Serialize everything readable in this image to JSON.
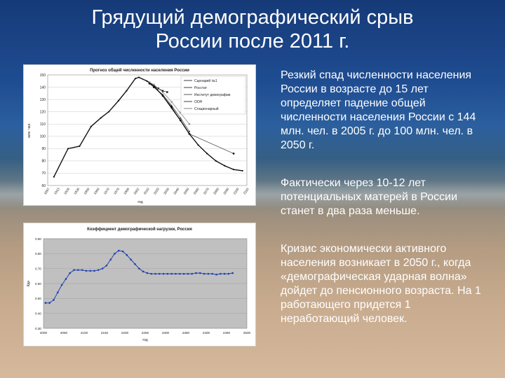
{
  "slide": {
    "title_line1": "Грядущий демографический срыв",
    "title_line2": "России после 2011 г.",
    "paragraphs": [
      "Резкий спад численности населения России в возрасте до 15 лет определяет падение общей численности населения России с 144 млн. чел. в 2005 г. до 100 млн. чел. в 2050 г.",
      "Фактически через 10-12 лет потенциальных матерей в России станет в два раза меньше.",
      "Кризис экономически активного населения возникает в 2050 г., когда «демографическая ударная волна» дойдет до пенсионного возраста. На 1 работающего придется 1 неработающий человек."
    ]
  },
  "colors": {
    "line_series": "#111111",
    "line2": "#1f3fb0",
    "plot_bg": "#c0c0c0"
  },
  "chart_data": [
    {
      "type": "line",
      "title": "Прогноз общей численности населения России",
      "xlabel": "год",
      "ylabel": "млн. чел.",
      "ylim": [
        60,
        150
      ],
      "yticks": [
        60,
        70,
        80,
        90,
        100,
        110,
        120,
        130,
        140,
        150
      ],
      "xticks": [
        "1897",
        "1913",
        "1926",
        "1939",
        "1950",
        "1959",
        "1970",
        "1979",
        "1989",
        "2002",
        "2010",
        "2020",
        "2030",
        "2040",
        "2050",
        "2060",
        "2070",
        "2080",
        "2090",
        "2100",
        "2110"
      ],
      "grid": true,
      "legend_position": "top-right",
      "series": [
        {
          "name": "Сценарий №1",
          "x": [
            1897,
            1913,
            1926,
            1939,
            1950,
            1959,
            1970,
            1979,
            1989,
            1993,
            2002,
            2010,
            2020,
            2030,
            2040,
            2050,
            2060,
            2070,
            2080,
            2090,
            2100,
            2110
          ],
          "values": [
            67,
            90,
            92,
            108,
            115,
            120,
            129,
            137,
            147,
            148,
            145,
            141,
            133,
            123,
            113,
            102,
            93,
            86,
            80,
            76,
            73,
            72
          ]
        },
        {
          "name": "Росстат",
          "x": [
            2005,
            2010,
            2015,
            2020,
            2025
          ],
          "values": [
            143,
            141,
            139,
            137,
            136
          ]
        },
        {
          "name": "Институт демографии",
          "x": [
            2005,
            2010,
            2020,
            2030,
            2040,
            2050
          ],
          "values": [
            143,
            140,
            134,
            125,
            115,
            104
          ]
        },
        {
          "name": "ООН",
          "x": [
            2005,
            2010,
            2020,
            2030,
            2040,
            2050,
            2100
          ],
          "values": [
            143,
            140,
            133,
            124,
            113,
            102,
            86
          ]
        },
        {
          "name": "Стационарный",
          "x": [
            2005,
            2010,
            2020,
            2030,
            2040,
            2050
          ],
          "values": [
            144,
            142,
            136,
            128,
            119,
            110
          ]
        }
      ]
    },
    {
      "type": "line",
      "title": "Коэффициент демографической нагрузки, Россия",
      "xlabel": "год",
      "ylabel": "Кдн",
      "ylim": [
        0.3,
        0.9
      ],
      "yticks": [
        "0.30",
        "0.40",
        "0.50",
        "0.60",
        "0.70",
        "0.80",
        "0.90"
      ],
      "xticks": [
        "2000",
        "2050",
        "2100",
        "2150",
        "2200",
        "2250",
        "2300",
        "2350",
        "2400",
        "2450",
        "2500"
      ],
      "grid": true,
      "series": [
        {
          "x": [
            2005,
            2015,
            2025,
            2035,
            2045,
            2055,
            2065,
            2075,
            2085,
            2095,
            2105,
            2115,
            2125,
            2135,
            2145,
            2155,
            2165,
            2175,
            2185,
            2195,
            2205,
            2215,
            2225,
            2235,
            2245,
            2255,
            2265,
            2275,
            2285,
            2295,
            2305,
            2315,
            2325,
            2335,
            2345,
            2355,
            2365,
            2375,
            2385,
            2395,
            2405,
            2415,
            2425,
            2435,
            2445,
            2455,
            2465
          ],
          "values": [
            0.47,
            0.47,
            0.49,
            0.54,
            0.59,
            0.63,
            0.67,
            0.69,
            0.69,
            0.69,
            0.685,
            0.685,
            0.685,
            0.69,
            0.7,
            0.72,
            0.76,
            0.8,
            0.82,
            0.815,
            0.79,
            0.76,
            0.73,
            0.7,
            0.68,
            0.67,
            0.665,
            0.665,
            0.665,
            0.665,
            0.665,
            0.665,
            0.665,
            0.665,
            0.665,
            0.665,
            0.665,
            0.67,
            0.67,
            0.665,
            0.665,
            0.665,
            0.66,
            0.665,
            0.665,
            0.665,
            0.67
          ]
        }
      ]
    }
  ]
}
